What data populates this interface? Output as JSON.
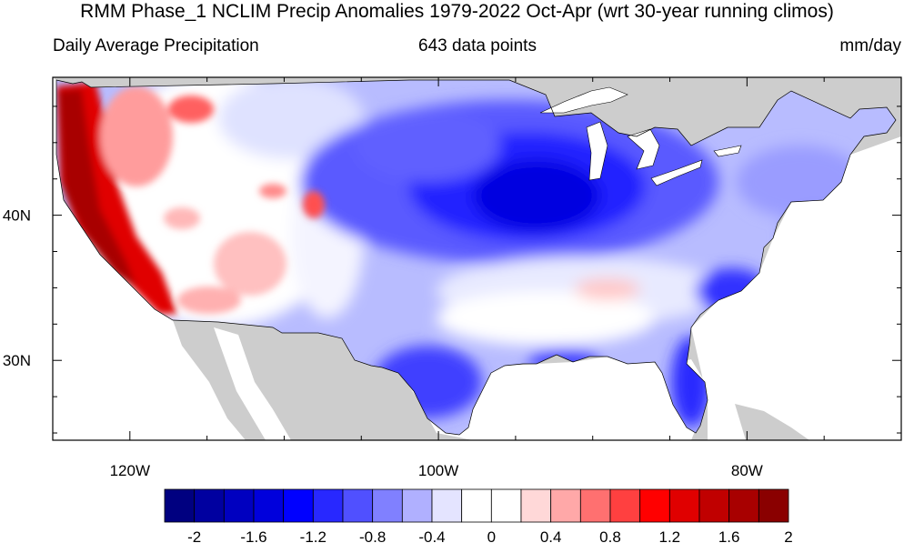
{
  "title": "RMM Phase_1 NCLIM Precip Anomalies 1979-2022 Oct-Apr (wrt 30-year running climos)",
  "subtitle_left": "Daily Average Precipitation",
  "subtitle_center": "643 data points",
  "subtitle_right": "mm/day",
  "axes": {
    "lat_labels": [
      {
        "value": 40,
        "label": "40N"
      },
      {
        "value": 30,
        "label": "30N"
      }
    ],
    "lon_labels": [
      {
        "value": -120,
        "label": "120W"
      },
      {
        "value": -100,
        "label": "100W"
      },
      {
        "value": -80,
        "label": "80W"
      }
    ],
    "lon_range": [
      -125,
      -70
    ],
    "lat_range": [
      24.5,
      49.5
    ]
  },
  "colorbar": {
    "colors": [
      "#000080",
      "#0000a0",
      "#0000c0",
      "#0000dc",
      "#0000ff",
      "#2828ff",
      "#5050ff",
      "#8080ff",
      "#b0b0ff",
      "#e4e4ff",
      "#ffffff",
      "#ffffff",
      "#ffd8d8",
      "#ffa8a8",
      "#ff7070",
      "#ff4040",
      "#ff0000",
      "#e00000",
      "#c00000",
      "#a80000",
      "#8a0000"
    ],
    "tick_labels": [
      "-2",
      "-1.6",
      "-1.2",
      "-0.8",
      "-0.4",
      "0",
      "0.4",
      "0.8",
      "1.2",
      "1.6",
      "2"
    ],
    "levels": [
      -2,
      -1.8,
      -1.6,
      -1.4,
      -1.2,
      -1,
      -0.8,
      -0.6,
      -0.4,
      -0.2,
      0,
      0.2,
      0.4,
      0.6,
      0.8,
      1,
      1.2,
      1.4,
      1.6,
      1.8,
      2
    ]
  },
  "colors": {
    "land_outside": "#cdcdcd",
    "water": "#ffffff",
    "frame": "#000000"
  }
}
